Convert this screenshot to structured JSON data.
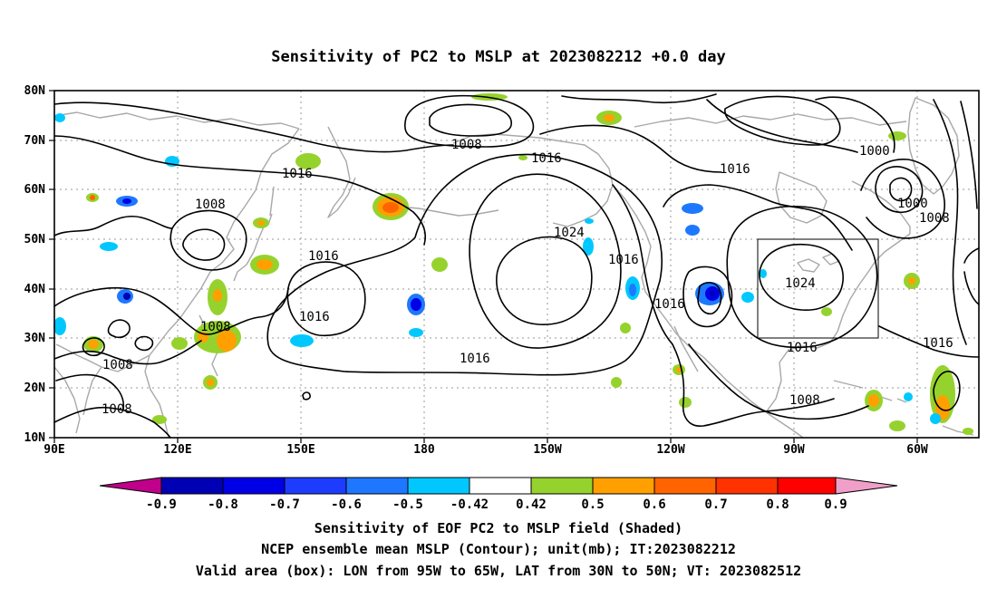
{
  "title": "Sensitivity of PC2 to MSLP at 2023082212 +0.0 day",
  "lat_ticks": [
    "80N",
    "70N",
    "60N",
    "50N",
    "40N",
    "30N",
    "20N",
    "10N"
  ],
  "lon_ticks": [
    "90E",
    "120E",
    "150E",
    "180",
    "150W",
    "120W",
    "90W",
    "60W"
  ],
  "contour_labels": [
    {
      "text": "1008"
    },
    {
      "text": "1016"
    },
    {
      "text": "1008"
    },
    {
      "text": "1016"
    },
    {
      "text": "1016"
    },
    {
      "text": "1008"
    },
    {
      "text": "1008"
    },
    {
      "text": "1008"
    },
    {
      "text": "1016"
    },
    {
      "text": "1024"
    },
    {
      "text": "1016"
    },
    {
      "text": "1016"
    },
    {
      "text": "1016"
    },
    {
      "text": "1016"
    },
    {
      "text": "1024"
    },
    {
      "text": "1016"
    },
    {
      "text": "1000"
    },
    {
      "text": "1000"
    },
    {
      "text": "1008"
    },
    {
      "text": "1016"
    },
    {
      "text": "1008"
    }
  ],
  "colorbar": {
    "labels": [
      "-0.9",
      "-0.8",
      "-0.7",
      "-0.6",
      "-0.5",
      "-0.42",
      "0.42",
      "0.5",
      "0.6",
      "0.7",
      "0.8",
      "0.9"
    ],
    "colors": [
      "#c0008a",
      "#0000b4",
      "#0000e6",
      "#1e3cff",
      "#1e78ff",
      "#00c8ff",
      "#ffffff",
      "#96d22d",
      "#ffa000",
      "#ff6400",
      "#ff3200",
      "#ff0000",
      "#f0a0c8"
    ]
  },
  "captions": [
    "Sensitivity of EOF PC2 to MSLP field (Shaded)",
    "NCEP ensemble mean MSLP (Contour); unit(mb); IT:2023082212",
    "Valid area (box): LON from 95W to 65W, LAT from 30N to 50N; VT: 2023082512"
  ]
}
